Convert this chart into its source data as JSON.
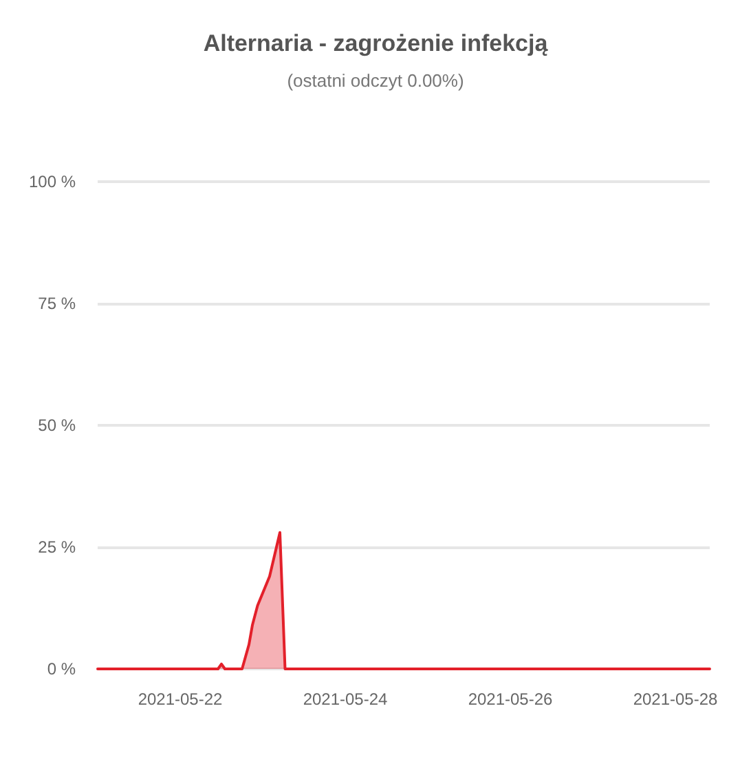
{
  "chart_data": {
    "type": "area",
    "title": "Alternaria - zagrożenie infekcją",
    "subtitle": "(ostatni odczyt 0.00%)",
    "x": [
      "2021-05-21T00:00",
      "2021-05-22T11:00",
      "2021-05-22T12:00",
      "2021-05-22T13:00",
      "2021-05-22T18:00",
      "2021-05-22T20:00",
      "2021-05-22T21:00",
      "2021-05-22T22:30",
      "2021-05-23T02:00",
      "2021-05-23T05:00",
      "2021-05-23T06:30",
      "2021-05-28T10:00"
    ],
    "series": [
      {
        "color": "#e3202a",
        "values": [
          0,
          0,
          1,
          0,
          0,
          5,
          9,
          13,
          19,
          28,
          0,
          0
        ]
      }
    ],
    "xlim": [
      "2021-05-21T00:00",
      "2021-05-28T10:00"
    ],
    "xticks": [
      "2021-05-22",
      "2021-05-24",
      "2021-05-26",
      "2021-05-28"
    ],
    "ylim": [
      0,
      100
    ],
    "yticks": [
      {
        "value": 0,
        "label": "0 %"
      },
      {
        "value": 25,
        "label": "25 %"
      },
      {
        "value": 50,
        "label": "50 %"
      },
      {
        "value": 75,
        "label": "75 %"
      },
      {
        "value": 100,
        "label": "100 %"
      }
    ],
    "grid": "y",
    "marker": "none",
    "line_style": "solid"
  }
}
